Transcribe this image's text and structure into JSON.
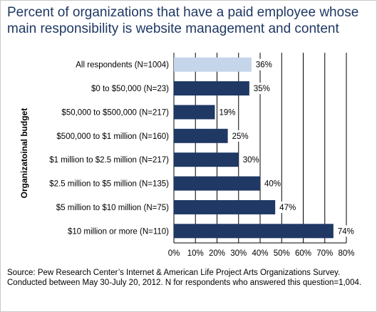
{
  "title": "Percent of organizations that have a paid employee whose main responsibility is website management and content",
  "source": "Source: Pew Research Center’s Internet & American Life Project Arts Organizations Survey. Conducted between May 30-July 20, 2012. N for respondents who answered this question=1,004.",
  "chart_data": {
    "type": "bar",
    "orientation": "horizontal",
    "title": "Percent of organizations that have a paid employee whose main responsibility is website management and content",
    "ylabel": "Organizatoinal budget",
    "xlabel": "",
    "categories": [
      "All respondents (N=1004)",
      "$0 to $50,000 (N=23)",
      "$50,000 to $500,000 (N=217)",
      "$500,000 to $1 million (N=160)",
      "$1 million to $2.5 million (N=217)",
      "$2.5 million to $5 million (N=135)",
      "$5 million to $10 million (N=75)",
      "$10 million or more (N=110)"
    ],
    "values": [
      36,
      35,
      19,
      25,
      30,
      40,
      47,
      74
    ],
    "data_labels": [
      "36%",
      "35%",
      "19%",
      "25%",
      "30%",
      "40%",
      "47%",
      "74%"
    ],
    "xlim": [
      0,
      80
    ],
    "xticks": [
      0,
      10,
      20,
      30,
      40,
      50,
      60,
      70,
      80
    ],
    "xtick_labels": [
      "0%",
      "10%",
      "20%",
      "30%",
      "40%",
      "50%",
      "60%",
      "70%",
      "80%"
    ],
    "grid": "vertical",
    "colors": {
      "highlight": "#c5d5ea",
      "bar": "#1f3864",
      "grid": "#000000"
    }
  }
}
